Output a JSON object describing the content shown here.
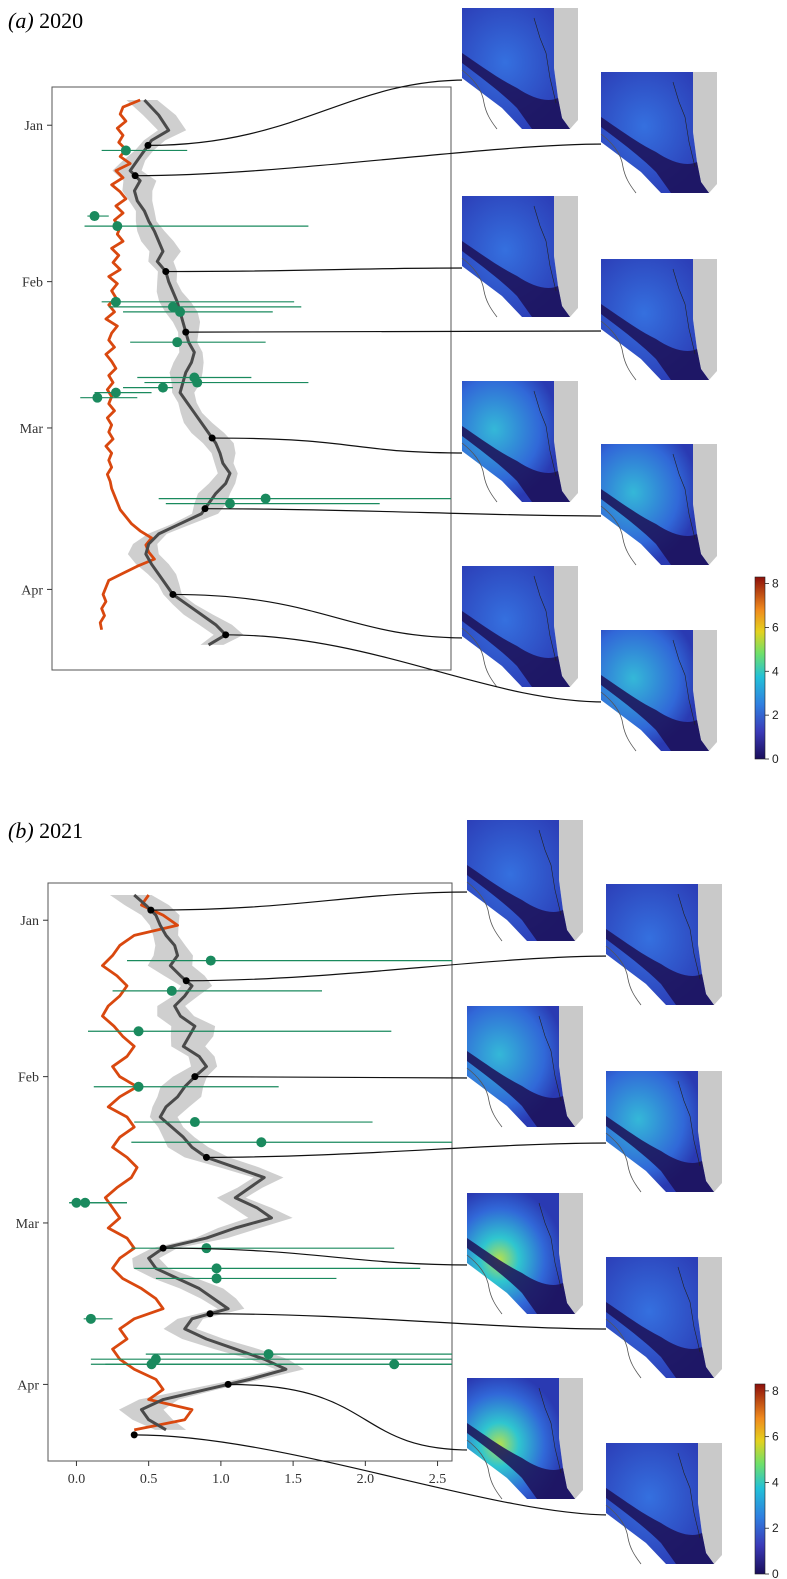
{
  "figure": {
    "colorbar_ticks": [
      "0",
      "2",
      "4",
      "6",
      "8"
    ],
    "colors": {
      "orange_line": "#d9480f",
      "mean_line": "#4a4a4a",
      "ribbon": "#cfcfcf",
      "observations": "#1a8a5e",
      "connector": "#111111"
    }
  },
  "chart_data": [
    {
      "type": "line",
      "panel_label": "(a)",
      "year": "2020",
      "y_ticks": [
        "Jan",
        "Feb",
        "Mar",
        "Apr"
      ],
      "y_tick_days": [
        5,
        36,
        65,
        97
      ],
      "x_ticks": [],
      "xlim": [
        -0.1,
        2.6
      ],
      "ylim": [
        0,
        110
      ],
      "orange_series": {
        "x": [
          0.42,
          0.3,
          0.28,
          0.32,
          0.26,
          0.3,
          0.27,
          0.32,
          0.28,
          0.35,
          0.25,
          0.3,
          0.22,
          0.28,
          0.32,
          0.25,
          0.3,
          0.24,
          0.28,
          0.26,
          0.3,
          0.22,
          0.27,
          0.23,
          0.28,
          0.2,
          0.26,
          0.22,
          0.25,
          0.2,
          0.24,
          0.18,
          0.26,
          0.22,
          0.2,
          0.24,
          0.18,
          0.22,
          0.25,
          0.2,
          0.23,
          0.19,
          0.22,
          0.2,
          0.24,
          0.19,
          0.22,
          0.2,
          0.23,
          0.18,
          0.22,
          0.2,
          0.22,
          0.19,
          0.21,
          0.22,
          0.24,
          0.26,
          0.28,
          0.32,
          0.36,
          0.42,
          0.5,
          0.46,
          0.48,
          0.52,
          0.4,
          0.3,
          0.2,
          0.18,
          0.16,
          0.18,
          0.15,
          0.17,
          0.14,
          0.15
        ],
        "days": [
          0,
          1,
          2,
          3,
          4,
          5,
          6,
          7,
          8,
          9,
          10,
          11,
          12,
          13,
          14,
          15,
          16,
          17,
          18,
          19,
          20,
          21,
          22,
          23,
          24,
          25,
          26,
          27,
          28,
          29,
          30,
          31,
          32,
          33,
          34,
          35,
          36,
          37,
          38,
          39,
          40,
          41,
          42,
          43,
          44,
          45,
          46,
          47,
          48,
          49,
          50,
          51,
          52,
          53,
          54,
          55,
          56,
          57,
          58,
          59,
          60,
          61,
          62,
          63,
          64,
          65,
          66,
          67,
          68,
          69,
          70,
          71,
          72,
          73,
          74,
          75
        ]
      },
      "orange_days_scale": 1.4,
      "mean_series": {
        "days": [
          0,
          3,
          6,
          8,
          10,
          12,
          14,
          16,
          18,
          20,
          22,
          24,
          26,
          28,
          30,
          32,
          34,
          36,
          38,
          40,
          42,
          44,
          46,
          48,
          50,
          52,
          54,
          56,
          58,
          60,
          62,
          64,
          66,
          68,
          70,
          72,
          74,
          76,
          78,
          80,
          82,
          84,
          86,
          88,
          90,
          92,
          94,
          96,
          98,
          100,
          102,
          104,
          106,
          108
        ],
        "x": [
          0.45,
          0.55,
          0.62,
          0.5,
          0.45,
          0.4,
          0.35,
          0.42,
          0.38,
          0.4,
          0.45,
          0.48,
          0.52,
          0.55,
          0.58,
          0.54,
          0.6,
          0.62,
          0.65,
          0.68,
          0.7,
          0.72,
          0.74,
          0.76,
          0.8,
          0.78,
          0.74,
          0.72,
          0.7,
          0.75,
          0.8,
          0.85,
          0.9,
          0.95,
          0.98,
          1.0,
          1.05,
          1.02,
          0.95,
          0.9,
          0.85,
          0.7,
          0.55,
          0.48,
          0.46,
          0.5,
          0.55,
          0.6,
          0.65,
          0.75,
          0.85,
          0.95,
          1.02,
          0.9
        ]
      },
      "ribbon_halfwidth": 0.09,
      "observations": [
        {
          "day": 10,
          "x": 0.32,
          "lo": 0.15,
          "hi": 0.75
        },
        {
          "day": 23,
          "x": 0.1,
          "lo": 0.05,
          "hi": 0.2
        },
        {
          "day": 25,
          "x": 0.26,
          "lo": 0.03,
          "hi": 1.6
        },
        {
          "day": 40,
          "x": 0.25,
          "lo": 0.15,
          "hi": 1.5
        },
        {
          "day": 41,
          "x": 0.65,
          "lo": 0.2,
          "hi": 1.55
        },
        {
          "day": 42,
          "x": 0.7,
          "lo": 0.3,
          "hi": 1.35
        },
        {
          "day": 48,
          "x": 0.68,
          "lo": 0.35,
          "hi": 1.3
        },
        {
          "day": 55,
          "x": 0.8,
          "lo": 0.4,
          "hi": 1.2
        },
        {
          "day": 56,
          "x": 0.82,
          "lo": 0.45,
          "hi": 1.6
        },
        {
          "day": 57,
          "x": 0.58,
          "lo": 0.3,
          "hi": 0.65
        },
        {
          "day": 58,
          "x": 0.25,
          "lo": 0.1,
          "hi": 0.5
        },
        {
          "day": 59,
          "x": 0.12,
          "lo": 0.0,
          "hi": 0.4
        },
        {
          "day": 79,
          "x": 1.3,
          "lo": 0.55,
          "hi": 2.6
        },
        {
          "day": 80,
          "x": 1.05,
          "lo": 0.6,
          "hi": 2.1
        }
      ],
      "highlight_days": [
        9,
        15,
        34,
        46,
        67,
        81,
        98,
        106
      ]
    },
    {
      "type": "line",
      "panel_label": "(b)",
      "year": "2021",
      "y_ticks": [
        "Jan",
        "Feb",
        "Mar",
        "Apr"
      ],
      "y_tick_days": [
        5,
        36,
        65,
        97
      ],
      "x_ticks": [
        "0.0",
        "0.5",
        "1.0",
        "1.5",
        "2.0",
        "2.5"
      ],
      "x_tick_values": [
        0,
        0.5,
        1.0,
        1.5,
        2.0,
        2.5
      ],
      "xlim": [
        -0.1,
        2.6
      ],
      "ylim": [
        0,
        110
      ],
      "orange_series": {
        "days": [
          0,
          2,
          4,
          6,
          8,
          10,
          12,
          14,
          16,
          18,
          20,
          22,
          24,
          26,
          28,
          30,
          32,
          34,
          36,
          38,
          40,
          42,
          44,
          46,
          48,
          50,
          52,
          54,
          56,
          58,
          60,
          62,
          64,
          66,
          68,
          70,
          72,
          74,
          76,
          78,
          80,
          82,
          84,
          86,
          88,
          90,
          92,
          94,
          96,
          98,
          100,
          102,
          104,
          106
        ],
        "x": [
          0.5,
          0.45,
          0.6,
          0.7,
          0.4,
          0.3,
          0.25,
          0.18,
          0.28,
          0.35,
          0.3,
          0.22,
          0.18,
          0.26,
          0.32,
          0.4,
          0.35,
          0.25,
          0.3,
          0.42,
          0.3,
          0.22,
          0.35,
          0.4,
          0.3,
          0.25,
          0.35,
          0.42,
          0.38,
          0.28,
          0.2,
          0.25,
          0.3,
          0.22,
          0.35,
          0.4,
          0.3,
          0.25,
          0.32,
          0.45,
          0.55,
          0.6,
          0.4,
          0.3,
          0.35,
          0.25,
          0.3,
          0.4,
          0.55,
          0.6,
          0.5,
          0.8,
          0.75,
          0.4
        ]
      },
      "mean_series": {
        "days": [
          0,
          2,
          4,
          6,
          8,
          10,
          12,
          14,
          16,
          18,
          20,
          22,
          24,
          26,
          28,
          30,
          32,
          34,
          36,
          38,
          40,
          42,
          44,
          46,
          48,
          50,
          52,
          54,
          56,
          58,
          60,
          62,
          64,
          66,
          68,
          70,
          72,
          74,
          76,
          78,
          80,
          82,
          84,
          86,
          88,
          90,
          92,
          94,
          96,
          98,
          100,
          102,
          104,
          106
        ],
        "x": [
          0.4,
          0.48,
          0.55,
          0.58,
          0.62,
          0.68,
          0.7,
          0.65,
          0.72,
          0.8,
          0.75,
          0.68,
          0.72,
          0.82,
          0.78,
          0.74,
          0.85,
          0.9,
          0.82,
          0.75,
          0.7,
          0.62,
          0.58,
          0.66,
          0.74,
          0.8,
          0.9,
          1.1,
          1.3,
          1.2,
          1.1,
          1.25,
          1.35,
          1.1,
          0.9,
          0.6,
          0.5,
          0.55,
          0.7,
          0.85,
          0.95,
          1.05,
          0.8,
          0.75,
          0.9,
          1.1,
          1.3,
          1.45,
          1.2,
          0.9,
          0.6,
          0.45,
          0.5,
          0.62
        ]
      },
      "ribbon_halfwidth": 0.12,
      "observations": [
        {
          "day": 13,
          "x": 0.93,
          "lo": 0.35,
          "hi": 2.6
        },
        {
          "day": 19,
          "x": 0.66,
          "lo": 0.25,
          "hi": 1.7
        },
        {
          "day": 27,
          "x": 0.43,
          "lo": 0.08,
          "hi": 2.18
        },
        {
          "day": 38,
          "x": 0.43,
          "lo": 0.12,
          "hi": 1.4
        },
        {
          "day": 45,
          "x": 0.82,
          "lo": 0.4,
          "hi": 2.05
        },
        {
          "day": 49,
          "x": 1.28,
          "lo": 0.38,
          "hi": 2.6
        },
        {
          "day": 61,
          "x": 0.0,
          "lo": -0.05,
          "hi": 0.35
        },
        {
          "day": 61,
          "x": 0.06,
          "lo": -0.05,
          "hi": 0.35
        },
        {
          "day": 70,
          "x": 0.9,
          "lo": 0.38,
          "hi": 2.2
        },
        {
          "day": 74,
          "x": 0.97,
          "lo": 0.4,
          "hi": 2.38
        },
        {
          "day": 76,
          "x": 0.97,
          "lo": 0.55,
          "hi": 1.8
        },
        {
          "day": 84,
          "x": 0.1,
          "lo": 0.05,
          "hi": 0.25
        },
        {
          "day": 91,
          "x": 1.33,
          "lo": 0.48,
          "hi": 2.6
        },
        {
          "day": 92,
          "x": 0.55,
          "lo": 0.1,
          "hi": 2.6
        },
        {
          "day": 93,
          "x": 0.52,
          "lo": 0.1,
          "hi": 2.6
        },
        {
          "day": 93,
          "x": 2.2,
          "lo": 0.2,
          "hi": 2.6
        }
      ],
      "highlight_days": [
        3,
        17,
        36,
        52,
        70,
        83,
        97,
        107
      ]
    }
  ]
}
